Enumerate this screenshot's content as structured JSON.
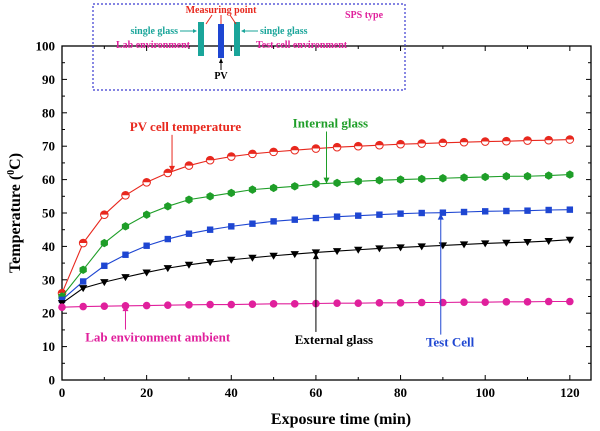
{
  "chart_data": {
    "type": "line",
    "xlabel": "Exposure time (min)",
    "ylabel": "Temperature (0C)",
    "ylabel_parts": {
      "main": "Temperature (",
      "sup": "0",
      "unit": "C)"
    },
    "xlim": [
      0,
      125
    ],
    "ylim": [
      0,
      100
    ],
    "x_ticks": [
      0,
      20,
      40,
      60,
      80,
      100,
      120
    ],
    "y_ticks": [
      0,
      10,
      20,
      30,
      40,
      50,
      60,
      70,
      80,
      90,
      100
    ],
    "grid": false,
    "x": [
      0,
      5,
      10,
      15,
      20,
      25,
      30,
      35,
      40,
      45,
      50,
      55,
      60,
      65,
      70,
      75,
      80,
      85,
      90,
      95,
      100,
      105,
      110,
      115,
      120
    ],
    "series": [
      {
        "name": "PV cell temperature",
        "color": "#e8281e",
        "marker": "half-circle",
        "values": [
          26.0,
          41.0,
          49.5,
          55.3,
          59.2,
          62.0,
          64.2,
          65.8,
          66.9,
          67.7,
          68.3,
          68.8,
          69.3,
          69.7,
          70.0,
          70.3,
          70.6,
          70.8,
          71.0,
          71.2,
          71.4,
          71.5,
          71.7,
          71.8,
          72.0
        ]
      },
      {
        "name": "Internal glass",
        "color": "#1e9e28",
        "marker": "hexagon",
        "values": [
          25.0,
          33.0,
          41.0,
          46.0,
          49.5,
          52.0,
          54.0,
          55.0,
          56.0,
          57.0,
          57.5,
          58.0,
          58.7,
          59.0,
          59.5,
          59.8,
          60.0,
          60.2,
          60.4,
          60.6,
          60.8,
          61.0,
          61.0,
          61.2,
          61.5
        ]
      },
      {
        "name": "Test Cell",
        "color": "#1e46d2",
        "marker": "square",
        "values": [
          24.0,
          29.5,
          34.2,
          37.5,
          40.2,
          42.2,
          43.8,
          45.0,
          46.0,
          46.8,
          47.5,
          48.0,
          48.5,
          48.9,
          49.2,
          49.5,
          49.8,
          50.0,
          50.1,
          50.3,
          50.5,
          50.6,
          50.7,
          50.9,
          51.0
        ]
      },
      {
        "name": "External glass",
        "color": "#000000",
        "marker": "triangle-down",
        "values": [
          23.0,
          27.5,
          29.3,
          30.8,
          32.2,
          33.5,
          34.5,
          35.3,
          36.0,
          36.6,
          37.2,
          37.7,
          38.2,
          38.6,
          39.0,
          39.4,
          39.7,
          40.0,
          40.3,
          40.6,
          40.9,
          41.1,
          41.3,
          41.6,
          42.0
        ]
      },
      {
        "name": "Lab environment ambient",
        "color": "#e0209c",
        "marker": "circle",
        "values": [
          21.8,
          22.0,
          22.1,
          22.2,
          22.3,
          22.4,
          22.5,
          22.6,
          22.6,
          22.7,
          22.8,
          22.8,
          22.9,
          23.0,
          23.0,
          23.1,
          23.1,
          23.2,
          23.2,
          23.3,
          23.3,
          23.4,
          23.4,
          23.5,
          23.5
        ]
      }
    ],
    "annotations": [
      {
        "text": "PV cell temperature",
        "color": "#e8281e",
        "label_xy": [
          16.0,
          74.6
        ],
        "arrow_to": [
          26.0,
          62.3
        ]
      },
      {
        "text": "Internal glass",
        "color": "#1e9e28",
        "label_xy": [
          54.5,
          75.6
        ],
        "arrow_to": [
          62.5,
          58.8
        ]
      },
      {
        "text": "Lab environment ambient",
        "color": "#e0209c",
        "label_xy": [
          5.5,
          11.5
        ],
        "arrow_to": [
          15.0,
          22.4
        ]
      },
      {
        "text": "External glass",
        "color": "#000000",
        "label_xy": [
          55.0,
          10.8
        ],
        "arrow_to": [
          60.0,
          38.0
        ]
      },
      {
        "text": "Test Cell",
        "color": "#1e46d2",
        "label_xy": [
          86.0,
          10.0
        ],
        "arrow_to": [
          89.5,
          49.8
        ]
      }
    ],
    "inset": {
      "title": "Measuring point",
      "left_glass": "single glass",
      "right_glass": "single glass",
      "left_env": "Lab environment",
      "right_env": "Test cell environment",
      "center": "PV",
      "type_label": "SPS type"
    }
  }
}
